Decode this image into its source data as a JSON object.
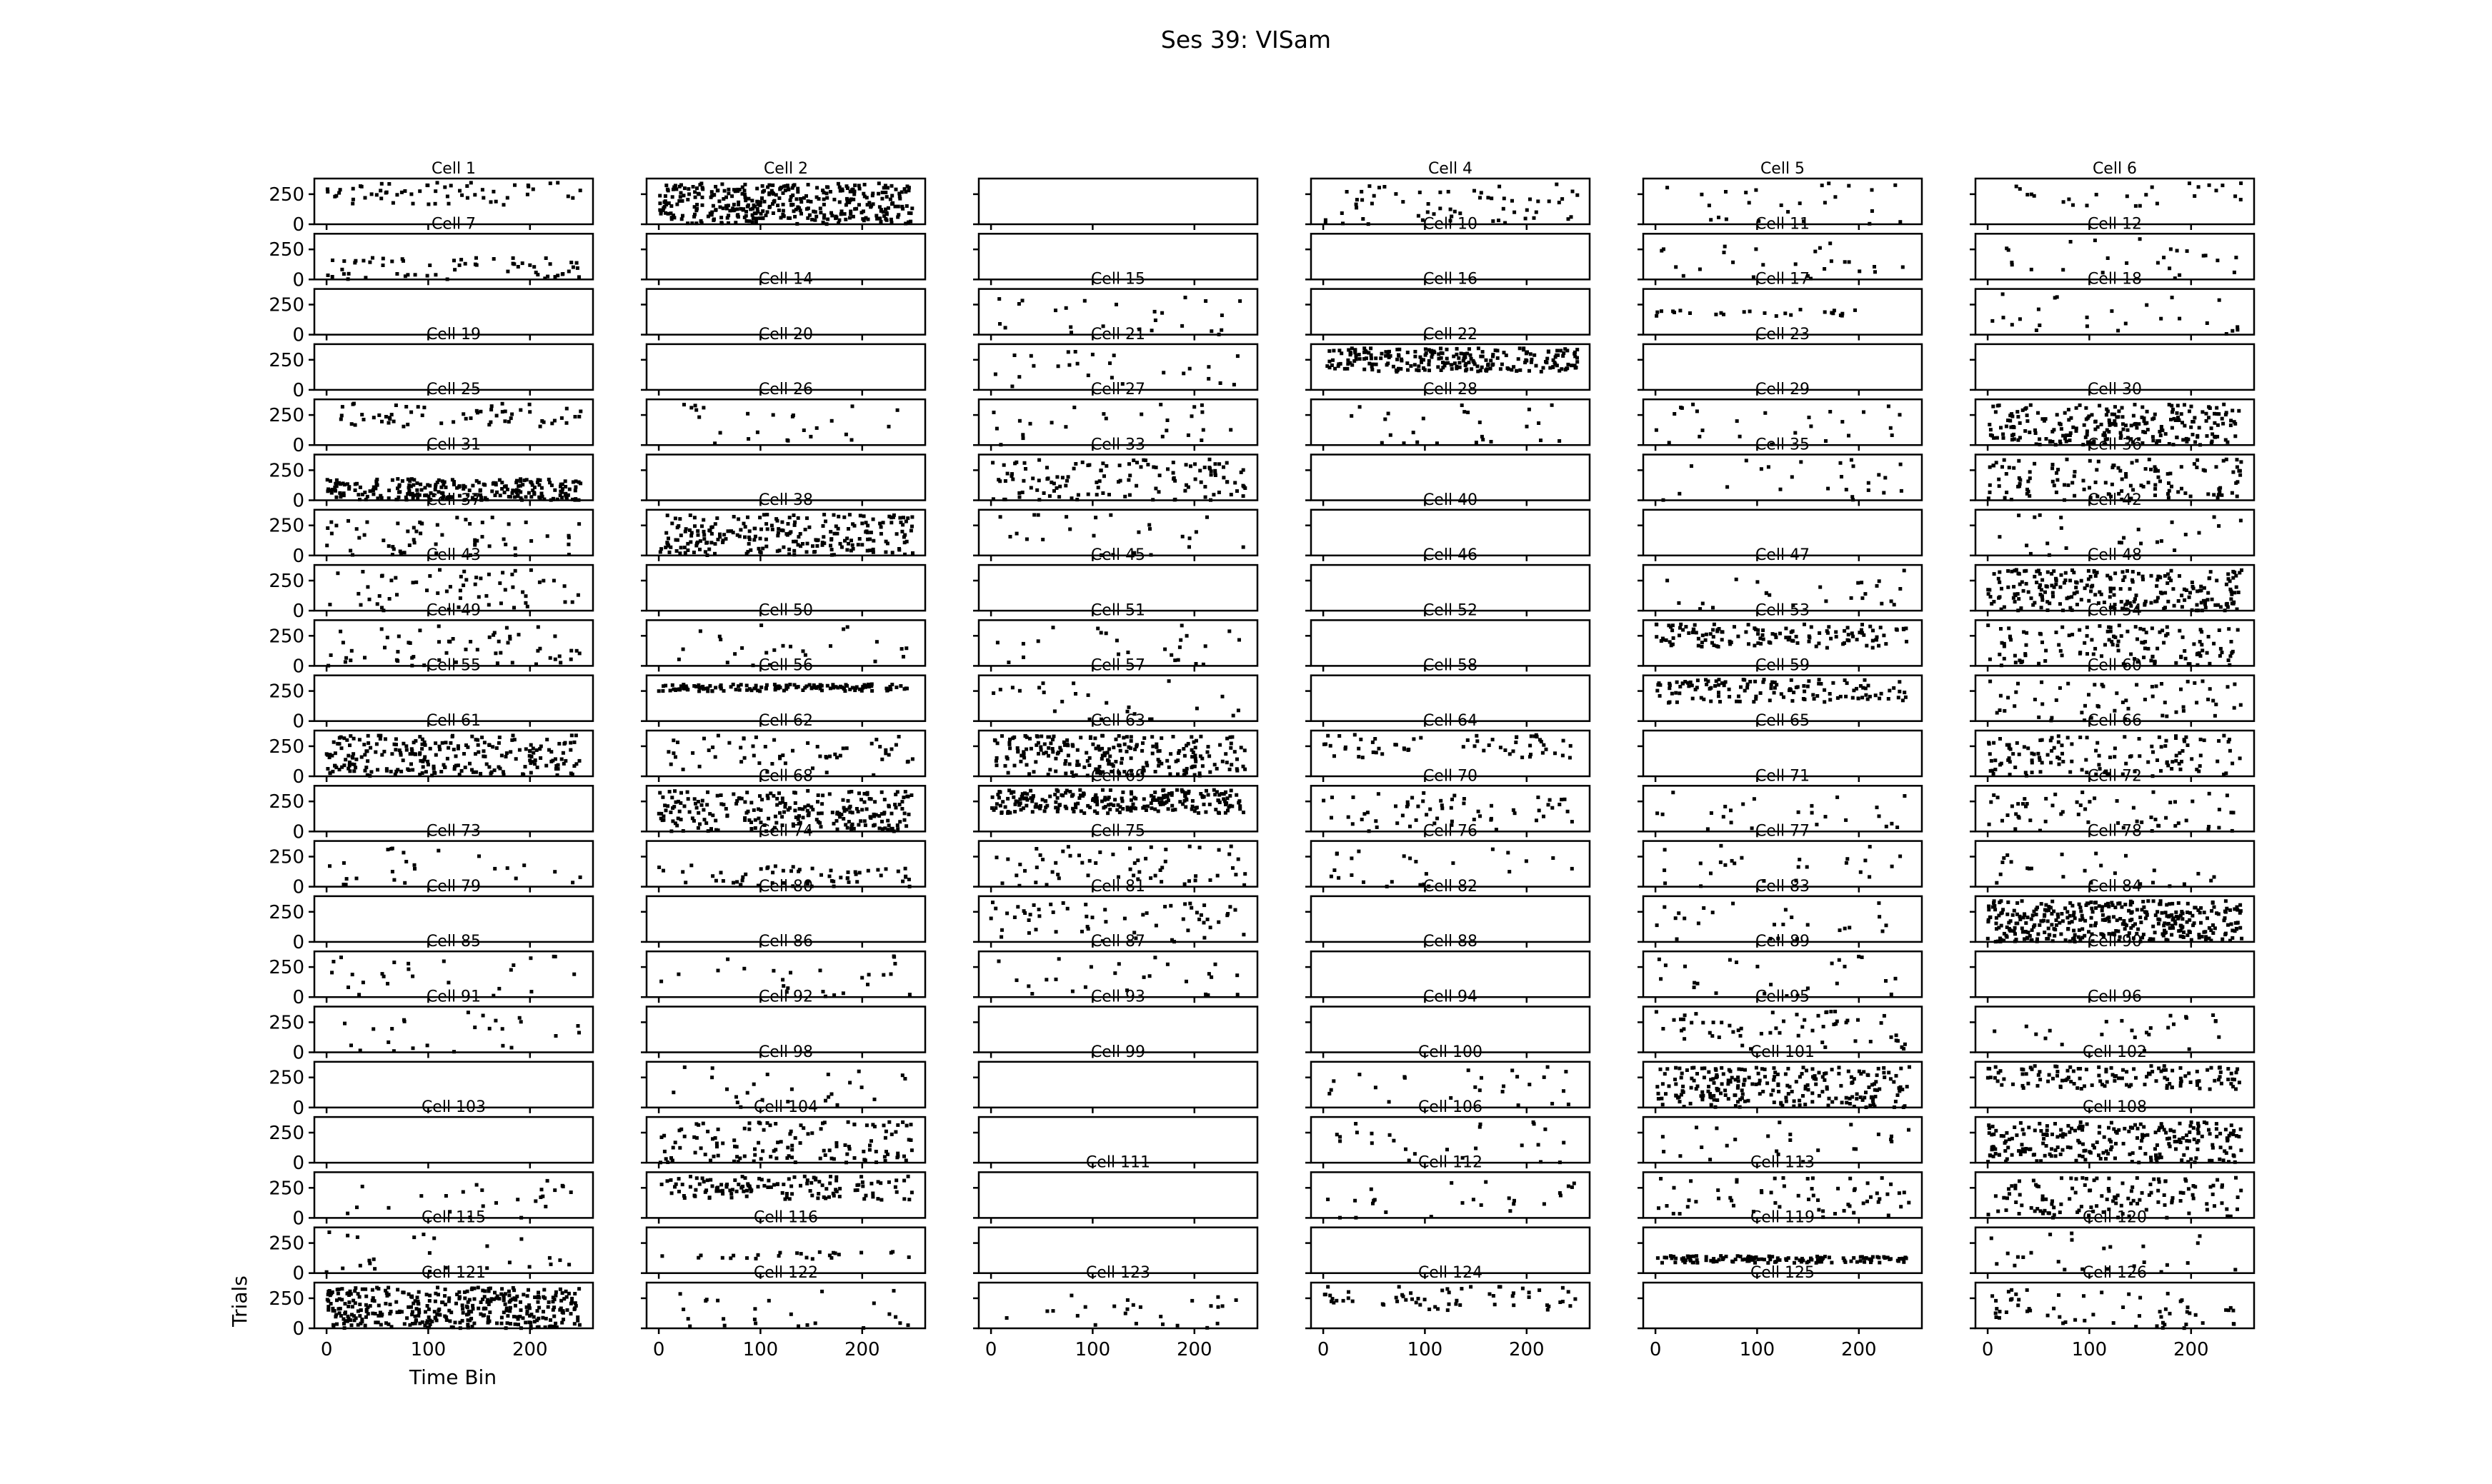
{
  "chart_data": {
    "type": "scatter",
    "title": "Ses 39:  VISam",
    "xlabel": "Time Bin",
    "ylabel": "Trials",
    "xlim": [
      -12,
      262
    ],
    "ylim": [
      0,
      380
    ],
    "xticks": [
      0,
      100,
      200
    ],
    "yticks": [
      0,
      250
    ],
    "grid": false,
    "layout": {
      "rows": 21,
      "cols": 6,
      "sharex": true,
      "sharey": true
    },
    "panels": [
      {
        "title": "Cell 1",
        "density": 2,
        "pattern": "top"
      },
      {
        "title": "Cell 2",
        "density": 5,
        "pattern": "uniform"
      },
      {
        "title": "",
        "density": 0,
        "pattern": "none"
      },
      {
        "title": "Cell 4",
        "density": 2,
        "pattern": "uniform"
      },
      {
        "title": "Cell 5",
        "density": 1,
        "pattern": "sparse"
      },
      {
        "title": "Cell 6",
        "density": 1,
        "pattern": "top"
      },
      {
        "title": "Cell 7",
        "density": 2,
        "pattern": "bottom"
      },
      {
        "title": "",
        "density": 0,
        "pattern": "none"
      },
      {
        "title": "",
        "density": 0,
        "pattern": "none"
      },
      {
        "title": "Cell 10",
        "density": 0,
        "pattern": "none"
      },
      {
        "title": "Cell 11",
        "density": 1,
        "pattern": "sparse"
      },
      {
        "title": "Cell 12",
        "density": 1,
        "pattern": "sparse"
      },
      {
        "title": "",
        "density": 0,
        "pattern": "none"
      },
      {
        "title": "Cell 14",
        "density": 0,
        "pattern": "none"
      },
      {
        "title": "Cell 15",
        "density": 1,
        "pattern": "sparse"
      },
      {
        "title": "Cell 16",
        "density": 0,
        "pattern": "none"
      },
      {
        "title": "Cell 17",
        "density": 1,
        "pattern": "band"
      },
      {
        "title": "Cell 18",
        "density": 1,
        "pattern": "sparse"
      },
      {
        "title": "Cell 19",
        "density": 0,
        "pattern": "none"
      },
      {
        "title": "Cell 20",
        "density": 0,
        "pattern": "none"
      },
      {
        "title": "Cell 21",
        "density": 1,
        "pattern": "sparse"
      },
      {
        "title": "Cell 22",
        "density": 4,
        "pattern": "top"
      },
      {
        "title": "Cell 23",
        "density": 0,
        "pattern": "none"
      },
      {
        "title": "",
        "density": 0,
        "pattern": "none"
      },
      {
        "title": "Cell 25",
        "density": 2,
        "pattern": "top"
      },
      {
        "title": "Cell 26",
        "density": 1,
        "pattern": "sparse"
      },
      {
        "title": "Cell 27",
        "density": 1,
        "pattern": "sparse"
      },
      {
        "title": "Cell 28",
        "density": 1,
        "pattern": "sparse"
      },
      {
        "title": "Cell 29",
        "density": 1,
        "pattern": "sparse"
      },
      {
        "title": "Cell 30",
        "density": 4,
        "pattern": "uniform"
      },
      {
        "title": "Cell 31",
        "density": 4,
        "pattern": "bottom"
      },
      {
        "title": "",
        "density": 0,
        "pattern": "none"
      },
      {
        "title": "Cell 33",
        "density": 3,
        "pattern": "uniform"
      },
      {
        "title": "",
        "density": 0,
        "pattern": "none"
      },
      {
        "title": "Cell 35",
        "density": 1,
        "pattern": "sparse"
      },
      {
        "title": "Cell 36",
        "density": 3,
        "pattern": "uniform"
      },
      {
        "title": "Cell 37",
        "density": 2,
        "pattern": "uniform"
      },
      {
        "title": "Cell 38",
        "density": 4,
        "pattern": "uniform"
      },
      {
        "title": "",
        "density": 1,
        "pattern": "sparse"
      },
      {
        "title": "Cell 40",
        "density": 0,
        "pattern": "none"
      },
      {
        "title": "",
        "density": 0,
        "pattern": "none"
      },
      {
        "title": "Cell 42",
        "density": 1,
        "pattern": "sparse"
      },
      {
        "title": "Cell 43",
        "density": 2,
        "pattern": "uniform"
      },
      {
        "title": "",
        "density": 0,
        "pattern": "none"
      },
      {
        "title": "Cell 45",
        "density": 0,
        "pattern": "none"
      },
      {
        "title": "Cell 46",
        "density": 0,
        "pattern": "none"
      },
      {
        "title": "Cell 47",
        "density": 1,
        "pattern": "sparse"
      },
      {
        "title": "Cell 48",
        "density": 4,
        "pattern": "uniform"
      },
      {
        "title": "Cell 49",
        "density": 2,
        "pattern": "uniform"
      },
      {
        "title": "Cell 50",
        "density": 1,
        "pattern": "sparse"
      },
      {
        "title": "Cell 51",
        "density": 1,
        "pattern": "sparse"
      },
      {
        "title": "Cell 52",
        "density": 0,
        "pattern": "none"
      },
      {
        "title": "Cell 53",
        "density": 3,
        "pattern": "top"
      },
      {
        "title": "Cell 54",
        "density": 3,
        "pattern": "uniform"
      },
      {
        "title": "Cell 55",
        "density": 0,
        "pattern": "none"
      },
      {
        "title": "Cell 56",
        "density": 3,
        "pattern": "band"
      },
      {
        "title": "Cell 57",
        "density": 1,
        "pattern": "sparse"
      },
      {
        "title": "Cell 58",
        "density": 0,
        "pattern": "none"
      },
      {
        "title": "Cell 59",
        "density": 3,
        "pattern": "top"
      },
      {
        "title": "Cell 60",
        "density": 2,
        "pattern": "uniform"
      },
      {
        "title": "Cell 61",
        "density": 4,
        "pattern": "uniform"
      },
      {
        "title": "Cell 62",
        "density": 2,
        "pattern": "uniform"
      },
      {
        "title": "Cell 63",
        "density": 4,
        "pattern": "uniform"
      },
      {
        "title": "Cell 64",
        "density": 2,
        "pattern": "top"
      },
      {
        "title": "Cell 65",
        "density": 0,
        "pattern": "none"
      },
      {
        "title": "Cell 66",
        "density": 3,
        "pattern": "uniform"
      },
      {
        "title": "",
        "density": 0,
        "pattern": "none"
      },
      {
        "title": "Cell 68",
        "density": 4,
        "pattern": "uniform"
      },
      {
        "title": "Cell 69",
        "density": 4,
        "pattern": "top"
      },
      {
        "title": "Cell 70",
        "density": 2,
        "pattern": "uniform"
      },
      {
        "title": "Cell 71",
        "density": 1,
        "pattern": "sparse"
      },
      {
        "title": "Cell 72",
        "density": 2,
        "pattern": "uniform"
      },
      {
        "title": "Cell 73",
        "density": 1,
        "pattern": "sparse"
      },
      {
        "title": "Cell 74",
        "density": 2,
        "pattern": "bottom"
      },
      {
        "title": "Cell 75",
        "density": 2,
        "pattern": "uniform"
      },
      {
        "title": "Cell 76",
        "density": 1,
        "pattern": "sparse"
      },
      {
        "title": "Cell 77",
        "density": 1,
        "pattern": "sparse"
      },
      {
        "title": "Cell 78",
        "density": 1,
        "pattern": "sparse"
      },
      {
        "title": "Cell 79",
        "density": 0,
        "pattern": "none"
      },
      {
        "title": "Cell 80",
        "density": 0,
        "pattern": "none"
      },
      {
        "title": "Cell 81",
        "density": 2,
        "pattern": "uniform"
      },
      {
        "title": "Cell 82",
        "density": 0,
        "pattern": "none"
      },
      {
        "title": "Cell 83",
        "density": 1,
        "pattern": "sparse"
      },
      {
        "title": "Cell 84",
        "density": 5,
        "pattern": "uniform"
      },
      {
        "title": "Cell 85",
        "density": 1,
        "pattern": "sparse"
      },
      {
        "title": "Cell 86",
        "density": 1,
        "pattern": "sparse"
      },
      {
        "title": "Cell 87",
        "density": 1,
        "pattern": "sparse"
      },
      {
        "title": "Cell 88",
        "density": 0,
        "pattern": "none"
      },
      {
        "title": "Cell 89",
        "density": 1,
        "pattern": "sparse"
      },
      {
        "title": "Cell 90",
        "density": 0,
        "pattern": "none"
      },
      {
        "title": "Cell 91",
        "density": 1,
        "pattern": "sparse"
      },
      {
        "title": "Cell 92",
        "density": 0,
        "pattern": "none"
      },
      {
        "title": "Cell 93",
        "density": 0,
        "pattern": "none"
      },
      {
        "title": "Cell 94",
        "density": 0,
        "pattern": "none"
      },
      {
        "title": "Cell 95",
        "density": 2,
        "pattern": "uniform"
      },
      {
        "title": "Cell 96",
        "density": 1,
        "pattern": "sparse"
      },
      {
        "title": "",
        "density": 0,
        "pattern": "none"
      },
      {
        "title": "Cell 98",
        "density": 1,
        "pattern": "sparse"
      },
      {
        "title": "Cell 99",
        "density": 0,
        "pattern": "none"
      },
      {
        "title": "Cell 100",
        "density": 1,
        "pattern": "sparse"
      },
      {
        "title": "Cell 101",
        "density": 4,
        "pattern": "uniform"
      },
      {
        "title": "Cell 102",
        "density": 3,
        "pattern": "top"
      },
      {
        "title": "Cell 103",
        "density": 0,
        "pattern": "none"
      },
      {
        "title": "Cell 104",
        "density": 3,
        "pattern": "uniform"
      },
      {
        "title": "",
        "density": 0,
        "pattern": "none"
      },
      {
        "title": "Cell 106",
        "density": 1,
        "pattern": "sparse"
      },
      {
        "title": "",
        "density": 1,
        "pattern": "sparse"
      },
      {
        "title": "Cell 108",
        "density": 4,
        "pattern": "uniform"
      },
      {
        "title": "",
        "density": 1,
        "pattern": "sparse"
      },
      {
        "title": "",
        "density": 3,
        "pattern": "top"
      },
      {
        "title": "Cell 111",
        "density": 0,
        "pattern": "none"
      },
      {
        "title": "Cell 112",
        "density": 1,
        "pattern": "sparse"
      },
      {
        "title": "Cell 113",
        "density": 2,
        "pattern": "uniform"
      },
      {
        "title": "",
        "density": 3,
        "pattern": "uniform"
      },
      {
        "title": "Cell 115",
        "density": 1,
        "pattern": "sparse"
      },
      {
        "title": "Cell 116",
        "density": 1,
        "pattern": "band"
      },
      {
        "title": "",
        "density": 0,
        "pattern": "none"
      },
      {
        "title": "",
        "density": 0,
        "pattern": "none"
      },
      {
        "title": "Cell 119",
        "density": 3,
        "pattern": "band"
      },
      {
        "title": "Cell 120",
        "density": 1,
        "pattern": "sparse"
      },
      {
        "title": "Cell 121",
        "density": 5,
        "pattern": "uniform"
      },
      {
        "title": "Cell 122",
        "density": 1,
        "pattern": "sparse"
      },
      {
        "title": "Cell 123",
        "density": 1,
        "pattern": "sparse"
      },
      {
        "title": "Cell 124",
        "density": 2,
        "pattern": "top"
      },
      {
        "title": "Cell 125",
        "density": 0,
        "pattern": "none"
      },
      {
        "title": "Cell 126",
        "density": 2,
        "pattern": "uniform"
      }
    ]
  }
}
